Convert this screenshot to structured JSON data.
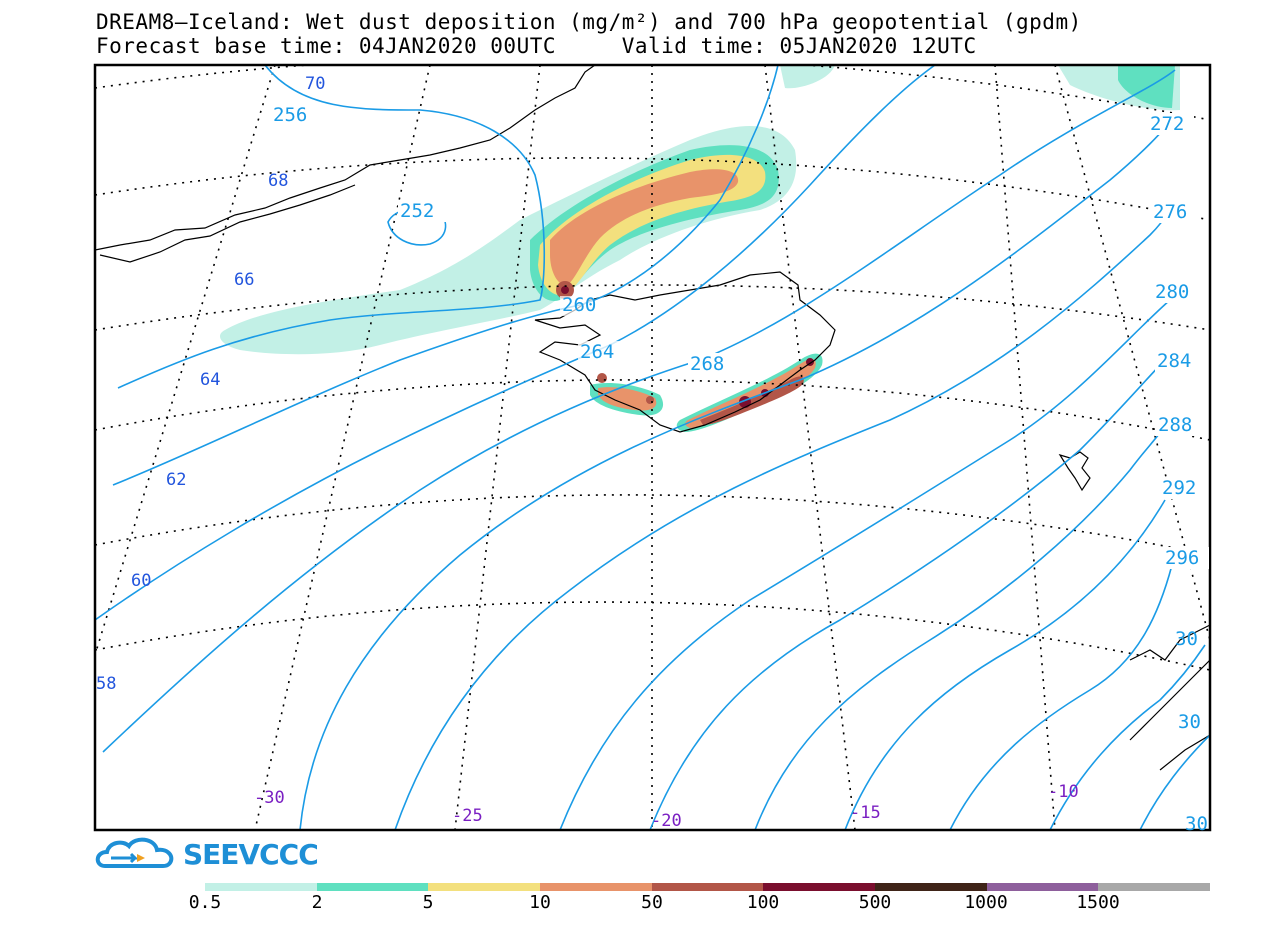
{
  "header": {
    "line1": "DREAM8—Iceland: Wet dust deposition (mg/m²) and 700 hPa geopotential (gpdm)",
    "line2": "Forecast base time: 04JAN2020 00UTC     Valid time: 05JAN2020 12UTC"
  },
  "map": {
    "contour_color": "#1a9be6",
    "lat_labels": [
      "70",
      "68",
      "66",
      "64",
      "62",
      "60",
      "58"
    ],
    "lon_labels": [
      "-30",
      "-25",
      "-20",
      "-15",
      "-10"
    ],
    "contour_labels": [
      "256",
      "252",
      "260",
      "264",
      "268",
      "272",
      "276",
      "280",
      "284",
      "288",
      "292",
      "296",
      "30",
      "30",
      "30"
    ]
  },
  "logo": {
    "name": "SEEVCCC"
  },
  "legend": {
    "colors": [
      "#c2f0e6",
      "#5fe0c0",
      "#f3e07e",
      "#e8936a",
      "#b25648",
      "#7a0e2e",
      "#3f2418",
      "#8e5f9c",
      "#a8a8a8"
    ],
    "labels": [
      "0.5",
      "2",
      "5",
      "10",
      "50",
      "100",
      "500",
      "1000",
      "1500"
    ]
  }
}
